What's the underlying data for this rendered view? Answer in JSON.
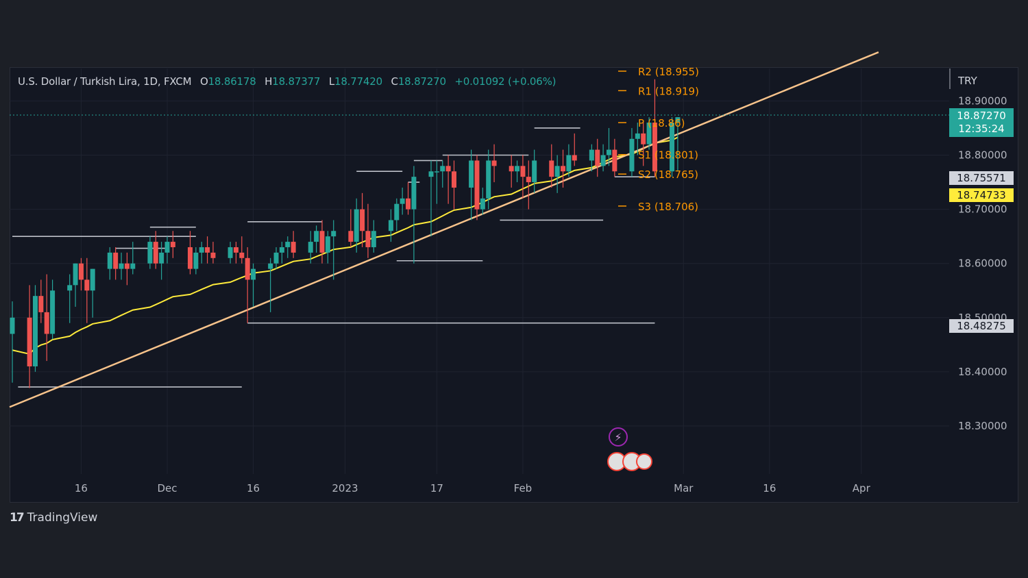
{
  "legend": {
    "symbol": "U.S. Dollar / Turkish Lira, 1D, FXCM",
    "open_label": "O",
    "open": "18.86178",
    "high_label": "H",
    "high": "18.87377",
    "low_label": "L",
    "low": "18.77420",
    "close_label": "C",
    "close": "18.87270",
    "change": "+0.01092 (+0.06%)"
  },
  "branding": {
    "name": "TradingView"
  },
  "price_tags": {
    "currency": "TRY",
    "last_price": "18.87270",
    "countdown": "12:35:24",
    "tag_a": "18.75571",
    "tag_b": "18.74733",
    "tag_c": "18.48275"
  },
  "colors": {
    "up": "#26a69a",
    "down": "#ef5350",
    "ma": "#ffeb3b",
    "trendline": "#f7c38b",
    "pivot": "#ff9800",
    "sr_lines": "#d1d4dc",
    "last_price_bg": "#26a69a",
    "tag_a_bg": "#d1d4dc",
    "tag_b_bg": "#ffeb3b"
  },
  "chart_data": {
    "type": "candlestick",
    "title": "U.S. Dollar / Turkish Lira, 1D, FXCM",
    "y_axis": {
      "ticks": [
        18.3,
        18.4,
        18.5,
        18.6,
        18.7,
        18.8,
        18.9
      ],
      "tick_labels": [
        "18.30000",
        "18.40000",
        "18.50000",
        "18.60000",
        "18.70000",
        "18.80000",
        "18.90000"
      ],
      "range": [
        18.22,
        18.98
      ]
    },
    "x_axis": {
      "tick_labels": [
        "16",
        "Dec",
        "16",
        "2023",
        "17",
        "Feb",
        "Mar",
        "16",
        "Apr"
      ],
      "tick_dates": [
        "2022-11-16",
        "2022-12-01",
        "2022-12-16",
        "2023-01-01",
        "2023-01-17",
        "2023-02-01",
        "2023-03-01",
        "2023-03-16",
        "2023-04-01"
      ],
      "range": [
        "2022-11-04",
        "2023-04-24"
      ]
    },
    "series": [
      {
        "kind": "ohlc",
        "start_date": "2022-11-04",
        "candles": [
          [
            18.47,
            18.53,
            18.38,
            18.5
          ],
          [
            18.5,
            18.56,
            18.37,
            18.41
          ],
          [
            18.41,
            18.56,
            18.4,
            18.54
          ],
          [
            18.54,
            18.57,
            18.49,
            18.51
          ],
          [
            18.51,
            18.58,
            18.42,
            18.47
          ],
          [
            18.47,
            18.57,
            18.46,
            18.55
          ],
          [
            18.55,
            18.58,
            18.49,
            18.56
          ],
          [
            18.56,
            18.6,
            18.52,
            18.6
          ],
          [
            18.6,
            18.61,
            18.55,
            18.57
          ],
          [
            18.57,
            18.61,
            18.49,
            18.55
          ],
          [
            18.55,
            18.59,
            18.5,
            18.59
          ],
          [
            18.59,
            18.63,
            18.57,
            18.62
          ],
          [
            18.62,
            18.63,
            18.57,
            18.59
          ],
          [
            18.59,
            18.62,
            18.57,
            18.6
          ],
          [
            18.6,
            18.62,
            18.56,
            18.59
          ],
          [
            18.59,
            18.64,
            18.58,
            18.6
          ],
          [
            18.6,
            18.65,
            18.59,
            18.64
          ],
          [
            18.64,
            18.66,
            18.59,
            18.6
          ],
          [
            18.6,
            18.64,
            18.57,
            18.62
          ],
          [
            18.62,
            18.65,
            18.6,
            18.64
          ],
          [
            18.64,
            18.66,
            18.61,
            18.63
          ],
          [
            18.63,
            18.66,
            18.58,
            18.59
          ],
          [
            18.59,
            18.63,
            18.58,
            18.62
          ],
          [
            18.62,
            18.64,
            18.6,
            18.63
          ],
          [
            18.63,
            18.65,
            18.6,
            18.62
          ],
          [
            18.62,
            18.64,
            18.6,
            18.61
          ],
          [
            18.61,
            18.64,
            18.6,
            18.63
          ],
          [
            18.63,
            18.64,
            18.6,
            18.62
          ],
          [
            18.62,
            18.65,
            18.6,
            18.61
          ],
          [
            18.61,
            18.63,
            18.49,
            18.57
          ],
          [
            18.57,
            18.6,
            18.52,
            18.59
          ],
          [
            18.59,
            18.61,
            18.51,
            18.6
          ],
          [
            18.6,
            18.63,
            18.59,
            18.62
          ],
          [
            18.62,
            18.64,
            18.6,
            18.63
          ],
          [
            18.63,
            18.65,
            18.61,
            18.64
          ],
          [
            18.64,
            18.66,
            18.61,
            18.62
          ],
          [
            18.62,
            18.66,
            18.6,
            18.64
          ],
          [
            18.64,
            18.67,
            18.62,
            18.66
          ],
          [
            18.66,
            18.68,
            18.6,
            18.62
          ],
          [
            18.62,
            18.66,
            18.6,
            18.65
          ],
          [
            18.65,
            18.68,
            18.57,
            18.66
          ],
          [
            18.66,
            18.7,
            18.63,
            18.64
          ],
          [
            18.64,
            18.72,
            18.62,
            18.7
          ],
          [
            18.7,
            18.73,
            18.63,
            18.66
          ],
          [
            18.66,
            18.71,
            18.61,
            18.63
          ],
          [
            18.63,
            18.68,
            18.62,
            18.66
          ],
          [
            18.66,
            18.7,
            18.64,
            18.68
          ],
          [
            18.68,
            18.72,
            18.66,
            18.71
          ],
          [
            18.71,
            18.74,
            18.69,
            18.72
          ],
          [
            18.72,
            18.75,
            18.69,
            18.7
          ],
          [
            18.7,
            18.78,
            18.6,
            18.76
          ],
          [
            18.76,
            18.79,
            18.65,
            18.77
          ],
          [
            18.77,
            18.79,
            18.71,
            18.77
          ],
          [
            18.77,
            18.79,
            18.74,
            18.78
          ],
          [
            18.78,
            18.8,
            18.71,
            18.77
          ],
          [
            18.77,
            18.79,
            18.7,
            18.74
          ],
          [
            18.74,
            18.81,
            18.68,
            18.79
          ],
          [
            18.79,
            18.8,
            18.68,
            18.7
          ],
          [
            18.7,
            18.74,
            18.69,
            18.72
          ],
          [
            18.72,
            18.81,
            18.7,
            18.79
          ],
          [
            18.79,
            18.82,
            18.75,
            18.78
          ],
          [
            18.78,
            18.8,
            18.74,
            18.77
          ],
          [
            18.77,
            18.79,
            18.75,
            18.78
          ],
          [
            18.78,
            18.8,
            18.72,
            18.76
          ],
          [
            18.76,
            18.79,
            18.7,
            18.75
          ],
          [
            18.75,
            18.81,
            18.73,
            18.79
          ],
          [
            18.79,
            18.82,
            18.74,
            18.76
          ],
          [
            18.76,
            18.8,
            18.73,
            18.78
          ],
          [
            18.78,
            18.81,
            18.74,
            18.77
          ],
          [
            18.77,
            18.82,
            18.76,
            18.8
          ],
          [
            18.8,
            18.84,
            18.78,
            18.79
          ],
          [
            18.79,
            18.82,
            18.77,
            18.81
          ],
          [
            18.81,
            18.83,
            18.76,
            18.78
          ],
          [
            18.78,
            18.82,
            18.77,
            18.8
          ],
          [
            18.8,
            18.85,
            18.78,
            18.81
          ],
          [
            18.81,
            18.83,
            18.76,
            18.77
          ],
          [
            18.77,
            18.85,
            18.76,
            18.83
          ],
          [
            18.83,
            18.86,
            18.8,
            18.84
          ],
          [
            18.84,
            18.86,
            18.78,
            18.82
          ],
          [
            18.82,
            18.87,
            18.81,
            18.86
          ],
          [
            18.86,
            18.94,
            18.76,
            18.77
          ],
          [
            18.77,
            18.87,
            18.76,
            18.86
          ],
          [
            18.86,
            18.87,
            18.77,
            18.87
          ]
        ]
      },
      {
        "kind": "moving_average"
      },
      {
        "kind": "trendline",
        "points": [
          [
            "2022-11-04",
            18.34
          ],
          [
            "2023-04-04",
            18.99
          ]
        ]
      }
    ],
    "pivots": [
      {
        "label": "R2 (18.955)",
        "value": 18.955
      },
      {
        "label": "R1 (18.919)",
        "value": 18.919
      },
      {
        "label": "P (18.86)",
        "value": 18.86
      },
      {
        "label": "S1 (18.801)",
        "value": 18.801
      },
      {
        "label": "S2 (18.765)",
        "value": 18.765
      },
      {
        "label": "S3 (18.706)",
        "value": 18.706
      }
    ],
    "horizontal_levels": [
      {
        "value": 18.65,
        "from": "2022-11-04",
        "to": "2022-12-06"
      },
      {
        "value": 18.372,
        "from": "2022-11-05",
        "to": "2022-12-14"
      },
      {
        "value": 18.628,
        "from": "2022-11-22",
        "to": "2022-12-01"
      },
      {
        "value": 18.667,
        "from": "2022-11-28",
        "to": "2022-12-06"
      },
      {
        "value": 18.677,
        "from": "2022-12-15",
        "to": "2022-12-28"
      },
      {
        "value": 18.49,
        "from": "2022-12-15",
        "to": "2023-02-24"
      },
      {
        "value": 18.77,
        "from": "2023-01-03",
        "to": "2023-01-11"
      },
      {
        "value": 18.79,
        "from": "2023-01-13",
        "to": "2023-01-18"
      },
      {
        "value": 18.75,
        "from": "2023-01-12",
        "to": "2023-01-14"
      },
      {
        "value": 18.8,
        "from": "2023-01-18",
        "to": "2023-02-02"
      },
      {
        "value": 18.605,
        "from": "2023-01-10",
        "to": "2023-01-25"
      },
      {
        "value": 18.68,
        "from": "2023-01-28",
        "to": "2023-02-15"
      },
      {
        "value": 18.85,
        "from": "2023-02-03",
        "to": "2023-02-11"
      },
      {
        "value": 18.76,
        "from": "2023-02-17",
        "to": "2023-02-24"
      }
    ],
    "last_price": 18.8727,
    "grid": true
  }
}
